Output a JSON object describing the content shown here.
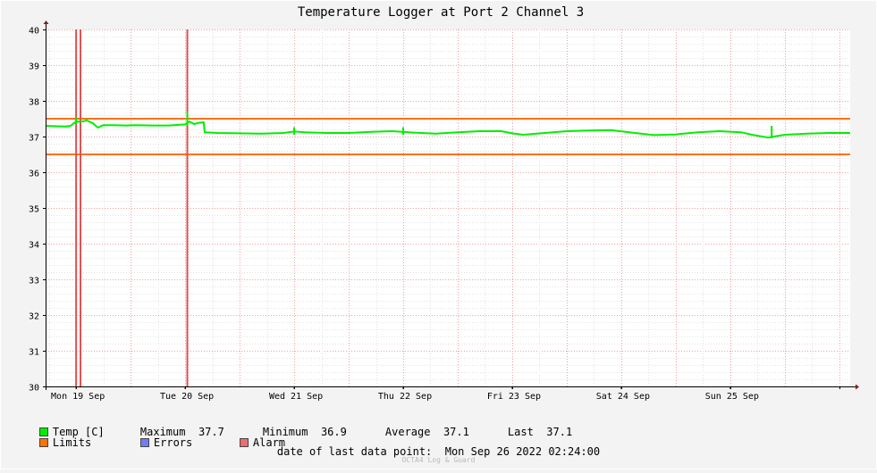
{
  "chart_data": {
    "type": "line",
    "title": "Temperature Logger at Port 2 Channel 3",
    "ylim": [
      30,
      40
    ],
    "y_ticks": [
      "30",
      "31",
      "32",
      "33",
      "34",
      "35",
      "36",
      "37",
      "38",
      "39",
      "40"
    ],
    "x_tick_labels": [
      "Mon 19 Sep",
      "Tue 20 Sep",
      "Wed 21 Sep",
      "Thu 22 Sep",
      "Fri 23 Sep",
      "Sat 24 Sep",
      "Sun 25 Sep"
    ],
    "x_range_days": [
      18.72,
      26.1
    ],
    "grid": true,
    "limits": {
      "upper": 37.5,
      "lower": 36.5
    },
    "alarm_events_days": [
      19.0,
      19.04,
      20.02
    ],
    "series": [
      {
        "name": "Temp [C]",
        "points": [
          [
            18.72,
            37.3
          ],
          [
            18.8,
            37.29
          ],
          [
            18.9,
            37.28
          ],
          [
            18.95,
            37.3
          ],
          [
            19.0,
            37.42
          ],
          [
            19.05,
            37.42
          ],
          [
            19.1,
            37.45
          ],
          [
            19.15,
            37.38
          ],
          [
            19.2,
            37.25
          ],
          [
            19.25,
            37.32
          ],
          [
            19.35,
            37.32
          ],
          [
            19.45,
            37.31
          ],
          [
            19.55,
            37.32
          ],
          [
            19.7,
            37.31
          ],
          [
            19.85,
            37.31
          ],
          [
            20.0,
            37.34
          ],
          [
            20.04,
            37.42
          ],
          [
            20.08,
            37.35
          ],
          [
            20.12,
            37.38
          ],
          [
            20.17,
            37.4
          ],
          [
            20.18,
            37.12
          ],
          [
            20.3,
            37.1
          ],
          [
            20.5,
            37.09
          ],
          [
            20.7,
            37.08
          ],
          [
            20.9,
            37.1
          ],
          [
            21.0,
            37.14
          ],
          [
            21.1,
            37.12
          ],
          [
            21.3,
            37.1
          ],
          [
            21.5,
            37.1
          ],
          [
            21.7,
            37.13
          ],
          [
            21.9,
            37.15
          ],
          [
            22.1,
            37.11
          ],
          [
            22.3,
            37.08
          ],
          [
            22.5,
            37.12
          ],
          [
            22.7,
            37.15
          ],
          [
            22.9,
            37.15
          ],
          [
            23.0,
            37.09
          ],
          [
            23.1,
            37.05
          ],
          [
            23.3,
            37.1
          ],
          [
            23.5,
            37.15
          ],
          [
            23.7,
            37.17
          ],
          [
            23.9,
            37.18
          ],
          [
            24.1,
            37.11
          ],
          [
            24.3,
            37.04
          ],
          [
            24.5,
            37.06
          ],
          [
            24.7,
            37.12
          ],
          [
            24.9,
            37.15
          ],
          [
            25.1,
            37.12
          ],
          [
            25.2,
            37.05
          ],
          [
            25.35,
            36.97
          ],
          [
            25.4,
            37.0
          ],
          [
            25.5,
            37.05
          ],
          [
            25.7,
            37.08
          ],
          [
            25.9,
            37.1
          ],
          [
            26.1,
            37.1
          ]
        ]
      }
    ],
    "spikes": [
      {
        "x": 19.0,
        "lo": 37.35,
        "hi": 37.55
      },
      {
        "x": 20.02,
        "lo": 37.3,
        "hi": 37.68
      },
      {
        "x": 21.0,
        "lo": 37.05,
        "hi": 37.26
      },
      {
        "x": 22.0,
        "lo": 37.05,
        "hi": 37.26
      },
      {
        "x": 25.38,
        "lo": 36.95,
        "hi": 37.3
      }
    ]
  },
  "legend": {
    "temp_label": "Temp [C]",
    "maximum_label": "Maximum",
    "maximum_value": "37.7",
    "minimum_label": "Minimum",
    "minimum_value": "36.9",
    "average_label": "Average",
    "average_value": "37.1",
    "last_label": "Last",
    "last_value": "37.1",
    "limits_label": "Limits",
    "errors_label": "Errors",
    "alarm_label": "Alarm"
  },
  "colors": {
    "temp": "#00ee00",
    "limits": "#ff7200",
    "errors": "#6f7ef5",
    "alarm": "#ef6d6d",
    "alarm_line": "#e05050",
    "grid": "#f2a0a0",
    "axis_arrow": "#8b1a1a"
  },
  "footer": {
    "date_label": "date of last data point:",
    "date_value": "Mon Sep 26 2022 02:24:00"
  },
  "watermark": "OCTA4 Log & Guard"
}
